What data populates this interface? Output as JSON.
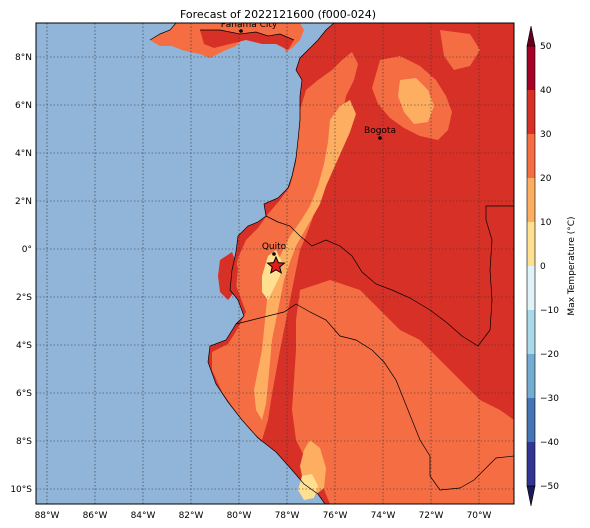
{
  "title": "Forecast of 2022121600 (f000-024)",
  "map": {
    "lon_ticks": [
      "88°W",
      "86°W",
      "84°W",
      "82°W",
      "80°W",
      "78°W",
      "76°W",
      "74°W",
      "72°W",
      "70°W"
    ],
    "lat_ticks": [
      "8°N",
      "6°N",
      "4°N",
      "2°N",
      "0°",
      "2°S",
      "4°S",
      "6°S",
      "8°S",
      "10°S"
    ],
    "cities": [
      {
        "name": "Panama City"
      },
      {
        "name": "Bogota"
      },
      {
        "name": "Quito"
      }
    ],
    "marker": "star-marker",
    "colors": {
      "ocean": "#91b4d9",
      "border": "#000000",
      "grid": "#333333"
    }
  },
  "colorbar": {
    "label": "Max Temperature (°C)",
    "ticks": [
      "50",
      "40",
      "30",
      "20",
      "10",
      "0",
      "−10",
      "−20",
      "−30",
      "−40",
      "−50"
    ],
    "colors": [
      "#a50026",
      "#d73027",
      "#f46d43",
      "#fdae61",
      "#fee090",
      "#ffffbf",
      "#e0f3f8",
      "#abd9e9",
      "#74add1",
      "#4575b4",
      "#313695"
    ]
  }
}
